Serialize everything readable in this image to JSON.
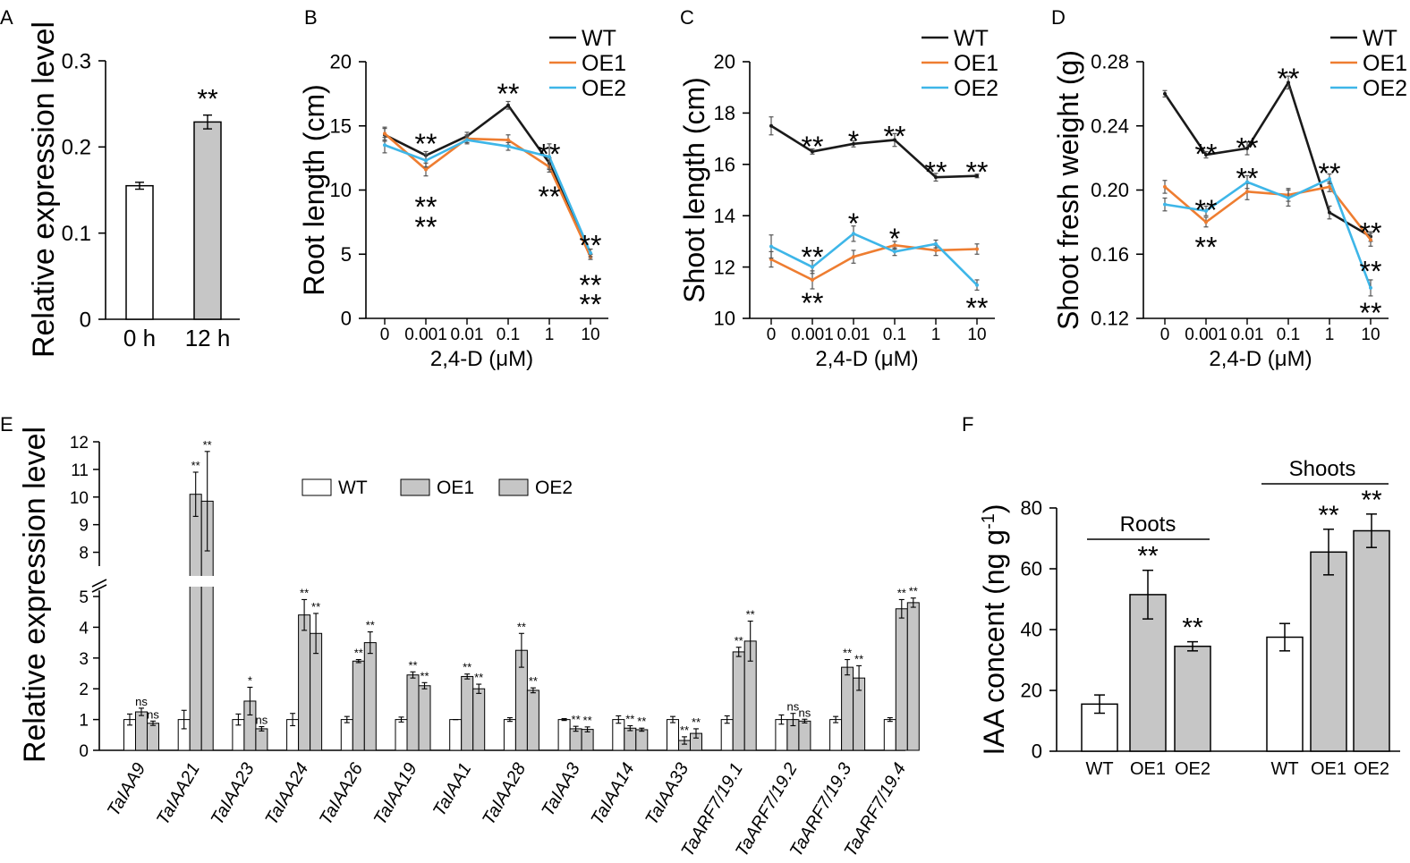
{
  "colors": {
    "wt": "#1a1a1a",
    "oe1": "#ee7d31",
    "oe2": "#3eb6e8",
    "oe1_star": "#f6a94a",
    "bar_fill": "#c6c6c6",
    "bar_white": "#ffffff"
  },
  "chart_data": [
    {
      "panel": "A",
      "type": "bar",
      "ylabel": "Relative expression level",
      "ylim": [
        0,
        0.3
      ],
      "yticks": [
        "0",
        "0.1",
        "0.2",
        "0.3"
      ],
      "categories": [
        "0 h",
        "12 h"
      ],
      "values": [
        0.155,
        0.229
      ],
      "errors": [
        0.004,
        0.008
      ],
      "annotations": [
        "",
        "**"
      ]
    },
    {
      "panel": "B",
      "type": "line",
      "xlabel": "2,4-D (μM)",
      "ylabel": "Root length (cm)",
      "ylim": [
        0,
        20
      ],
      "yticks": [
        "0",
        "5",
        "10",
        "15",
        "20"
      ],
      "x": [
        "0",
        "0.001",
        "0.01",
        "0.1",
        "1",
        "10"
      ],
      "legend": [
        "WT",
        "OE1",
        "OE2"
      ],
      "series": [
        {
          "name": "WT",
          "values": [
            14.3,
            12.7,
            14.2,
            16.6,
            12.1,
            4.8
          ],
          "errors": [
            0.5,
            0.3,
            0.3,
            0.3,
            0.4,
            0.2
          ]
        },
        {
          "name": "OE1",
          "values": [
            14.4,
            11.6,
            14.0,
            13.9,
            11.8,
            4.8
          ],
          "errors": [
            0.5,
            0.5,
            0.3,
            0.4,
            0.4,
            0.2
          ]
        },
        {
          "name": "OE2",
          "values": [
            13.5,
            12.3,
            13.9,
            13.4,
            12.6,
            5.1
          ],
          "errors": [
            0.6,
            0.5,
            0.3,
            0.3,
            1.0,
            0.3
          ]
        }
      ],
      "annotations": [
        {
          "x": "0.001",
          "y": 13.8,
          "text": "**",
          "series": "WT"
        },
        {
          "x": "0.1",
          "y": 17.7,
          "text": "**",
          "series": "WT"
        },
        {
          "x": "1",
          "y": 13.0,
          "text": "**",
          "series": "WT"
        },
        {
          "x": "10",
          "y": 5.9,
          "text": "**",
          "series": "WT"
        },
        {
          "x": "0.001",
          "y": 8.9,
          "text": "**",
          "series": "OE2"
        },
        {
          "x": "0.001",
          "y": 7.3,
          "text": "**",
          "series": "OE1"
        },
        {
          "x": "1",
          "y": 9.7,
          "text": "**",
          "series": "OE1"
        },
        {
          "x": "10",
          "y": 2.8,
          "text": "**",
          "series": "OE2"
        },
        {
          "x": "10",
          "y": 1.3,
          "text": "**",
          "series": "OE1"
        }
      ]
    },
    {
      "panel": "C",
      "type": "line",
      "xlabel": "2,4-D (μM)",
      "ylabel": "Shoot length (cm)",
      "ylim": [
        10,
        20
      ],
      "yticks": [
        "10",
        "12",
        "14",
        "16",
        "18",
        "20"
      ],
      "x": [
        "0",
        "0.001",
        "0.01",
        "0.1",
        "1",
        "10"
      ],
      "legend": [
        "WT",
        "OE1",
        "OE2"
      ],
      "series": [
        {
          "name": "WT",
          "values": [
            17.5,
            16.5,
            16.8,
            16.95,
            15.5,
            15.55
          ],
          "errors": [
            0.35,
            0.1,
            0.12,
            0.25,
            0.15,
            0.07
          ]
        },
        {
          "name": "OE1",
          "values": [
            12.3,
            11.5,
            12.4,
            12.85,
            12.65,
            12.7
          ],
          "errors": [
            0.3,
            0.35,
            0.25,
            0.15,
            0.2,
            0.2
          ]
        },
        {
          "name": "OE2",
          "values": [
            12.8,
            12.0,
            13.3,
            12.6,
            12.9,
            11.3
          ],
          "errors": [
            0.45,
            0.25,
            0.3,
            0.15,
            0.15,
            0.2
          ]
        }
      ],
      "annotations": [
        {
          "x": "0.001",
          "y": 16.8,
          "text": "**",
          "series": "WT"
        },
        {
          "x": "0.01",
          "y": 17.0,
          "text": "*",
          "series": "WT"
        },
        {
          "x": "0.1",
          "y": 17.2,
          "text": "**",
          "series": "WT"
        },
        {
          "x": "1",
          "y": 15.8,
          "text": "**",
          "series": "WT"
        },
        {
          "x": "10",
          "y": 15.8,
          "text": "**",
          "series": "WT"
        },
        {
          "x": "0.001",
          "y": 12.5,
          "text": "**",
          "series": "OE2"
        },
        {
          "x": "0.001",
          "y": 10.7,
          "text": "**",
          "series": "OE1"
        },
        {
          "x": "0.01",
          "y": 13.8,
          "text": "*",
          "series": "OE2"
        },
        {
          "x": "0.1",
          "y": 13.2,
          "text": "*",
          "series": "OE1"
        },
        {
          "x": "10",
          "y": 10.5,
          "text": "**",
          "series": "OE2"
        }
      ]
    },
    {
      "panel": "D",
      "type": "line",
      "xlabel": "2,4-D (μM)",
      "ylabel": "Shoot fresh weight (g)",
      "ylim": [
        0.12,
        0.28
      ],
      "yticks": [
        "0.12",
        "0.16",
        "0.20",
        "0.24",
        "0.28"
      ],
      "x": [
        "0",
        "0.001",
        "0.01",
        "0.1",
        "1",
        "10"
      ],
      "legend": [
        "WT",
        "OE1",
        "OE2"
      ],
      "series": [
        {
          "name": "WT",
          "values": [
            0.26,
            0.222,
            0.226,
            0.267,
            0.186,
            0.171
          ],
          "errors": [
            0.002,
            0.002,
            0.004,
            0.004,
            0.004,
            0.003
          ]
        },
        {
          "name": "OE1",
          "values": [
            0.202,
            0.18,
            0.199,
            0.197,
            0.202,
            0.169
          ],
          "errors": [
            0.004,
            0.003,
            0.005,
            0.004,
            0.003,
            0.004
          ]
        },
        {
          "name": "OE2",
          "values": [
            0.191,
            0.187,
            0.205,
            0.195,
            0.207,
            0.139
          ],
          "errors": [
            0.004,
            0.003,
            0.004,
            0.005,
            0.003,
            0.005
          ]
        }
      ],
      "annotations": [
        {
          "x": "0.001",
          "y": 0.224,
          "text": "**",
          "series": "WT"
        },
        {
          "x": "0.01",
          "y": 0.228,
          "text": "**",
          "series": "WT"
        },
        {
          "x": "0.1",
          "y": 0.271,
          "text": "**",
          "series": "WT"
        },
        {
          "x": "10",
          "y": 0.175,
          "text": "**",
          "series": "WT"
        },
        {
          "x": "0.001",
          "y": 0.189,
          "text": "**",
          "series": "OE2"
        },
        {
          "x": "0.001",
          "y": 0.166,
          "text": "**",
          "series": "OE1"
        },
        {
          "x": "0.01",
          "y": 0.209,
          "text": "**",
          "series": "OE2"
        },
        {
          "x": "1",
          "y": 0.212,
          "text": "**",
          "series": "OE2"
        },
        {
          "x": "10",
          "y": 0.151,
          "text": "**",
          "series": "OE1"
        },
        {
          "x": "10",
          "y": 0.125,
          "text": "**",
          "series": "OE2"
        }
      ]
    },
    {
      "panel": "E",
      "type": "bar",
      "ylabel": "Relative expression level",
      "ylim": [
        0,
        12
      ],
      "axis_break": [
        5.2,
        7.5
      ],
      "yticks": [
        "0",
        "1",
        "2",
        "3",
        "4",
        "5",
        "8",
        "9",
        "10",
        "11",
        "12"
      ],
      "legend": [
        "WT",
        "OE1",
        "OE2"
      ],
      "categories": [
        "TaIAA9",
        "TaIAA21",
        "TaIAA23",
        "TaIAA24",
        "TaIAA26",
        "TaIAA19",
        "TaIAA1",
        "TaIAA28",
        "TaIAA3",
        "TaIAA14",
        "TaIAA33",
        "TaARF7/19.1",
        "TaARF7/19.2",
        "TaARF7/19.3",
        "TaARF7/19.4"
      ],
      "series": [
        {
          "name": "WT",
          "values": [
            1.0,
            1.0,
            1.0,
            1.0,
            1.0,
            1.0,
            1.0,
            1.0,
            1.0,
            1.0,
            1.0,
            1.0,
            1.0,
            1.0,
            1.0
          ],
          "errors": [
            0.18,
            0.3,
            0.18,
            0.2,
            0.1,
            0.08,
            0.0,
            0.06,
            0.03,
            0.12,
            0.1,
            0.12,
            0.15,
            0.1,
            0.06
          ]
        },
        {
          "name": "OE1",
          "values": [
            1.25,
            10.1,
            1.6,
            4.4,
            2.9,
            2.45,
            2.4,
            3.25,
            0.7,
            0.72,
            0.32,
            3.2,
            1.0,
            2.7,
            4.6
          ],
          "errors": [
            0.12,
            0.8,
            0.45,
            0.5,
            0.05,
            0.1,
            0.08,
            0.55,
            0.08,
            0.08,
            0.12,
            0.15,
            0.2,
            0.25,
            0.3
          ]
        },
        {
          "name": "OE2",
          "values": [
            0.88,
            9.85,
            0.7,
            3.8,
            3.5,
            2.1,
            2.0,
            1.95,
            0.68,
            0.67,
            0.55,
            3.55,
            0.95,
            2.35,
            4.8
          ],
          "errors": [
            0.07,
            1.8,
            0.07,
            0.65,
            0.35,
            0.1,
            0.15,
            0.08,
            0.08,
            0.05,
            0.15,
            0.65,
            0.06,
            0.4,
            0.15
          ]
        }
      ],
      "annotations": [
        [
          "",
          "ns",
          "ns"
        ],
        [
          "",
          "**",
          "**"
        ],
        [
          "",
          "*",
          "ns"
        ],
        [
          "",
          "**",
          "**"
        ],
        [
          "",
          "**",
          "**"
        ],
        [
          "",
          "**",
          "**"
        ],
        [
          "",
          "**",
          "**"
        ],
        [
          "",
          "**",
          "**"
        ],
        [
          "",
          "**",
          "**"
        ],
        [
          "",
          "**",
          "**"
        ],
        [
          "",
          "**",
          "**"
        ],
        [
          "",
          "**",
          "**"
        ],
        [
          "",
          "ns",
          "ns"
        ],
        [
          "",
          "**",
          "**"
        ],
        [
          "",
          "**",
          "**"
        ]
      ]
    },
    {
      "panel": "F",
      "type": "bar",
      "ylabel": "IAA concent (ng g",
      "ylabel_sup": "-1",
      "ylabel_end": ")",
      "ylim": [
        0,
        80
      ],
      "yticks": [
        "0",
        "20",
        "40",
        "60",
        "80"
      ],
      "groups": [
        "Roots",
        "Shoots"
      ],
      "categories": [
        "WT",
        "OE1",
        "OE2",
        "WT",
        "OE1",
        "OE2"
      ],
      "values": [
        15.5,
        51.5,
        34.5,
        37.5,
        65.5,
        72.5
      ],
      "errors": [
        3.0,
        8.0,
        1.5,
        4.5,
        7.5,
        5.5
      ],
      "annotations": [
        "",
        "**",
        "**",
        "",
        "**",
        "**"
      ]
    }
  ]
}
